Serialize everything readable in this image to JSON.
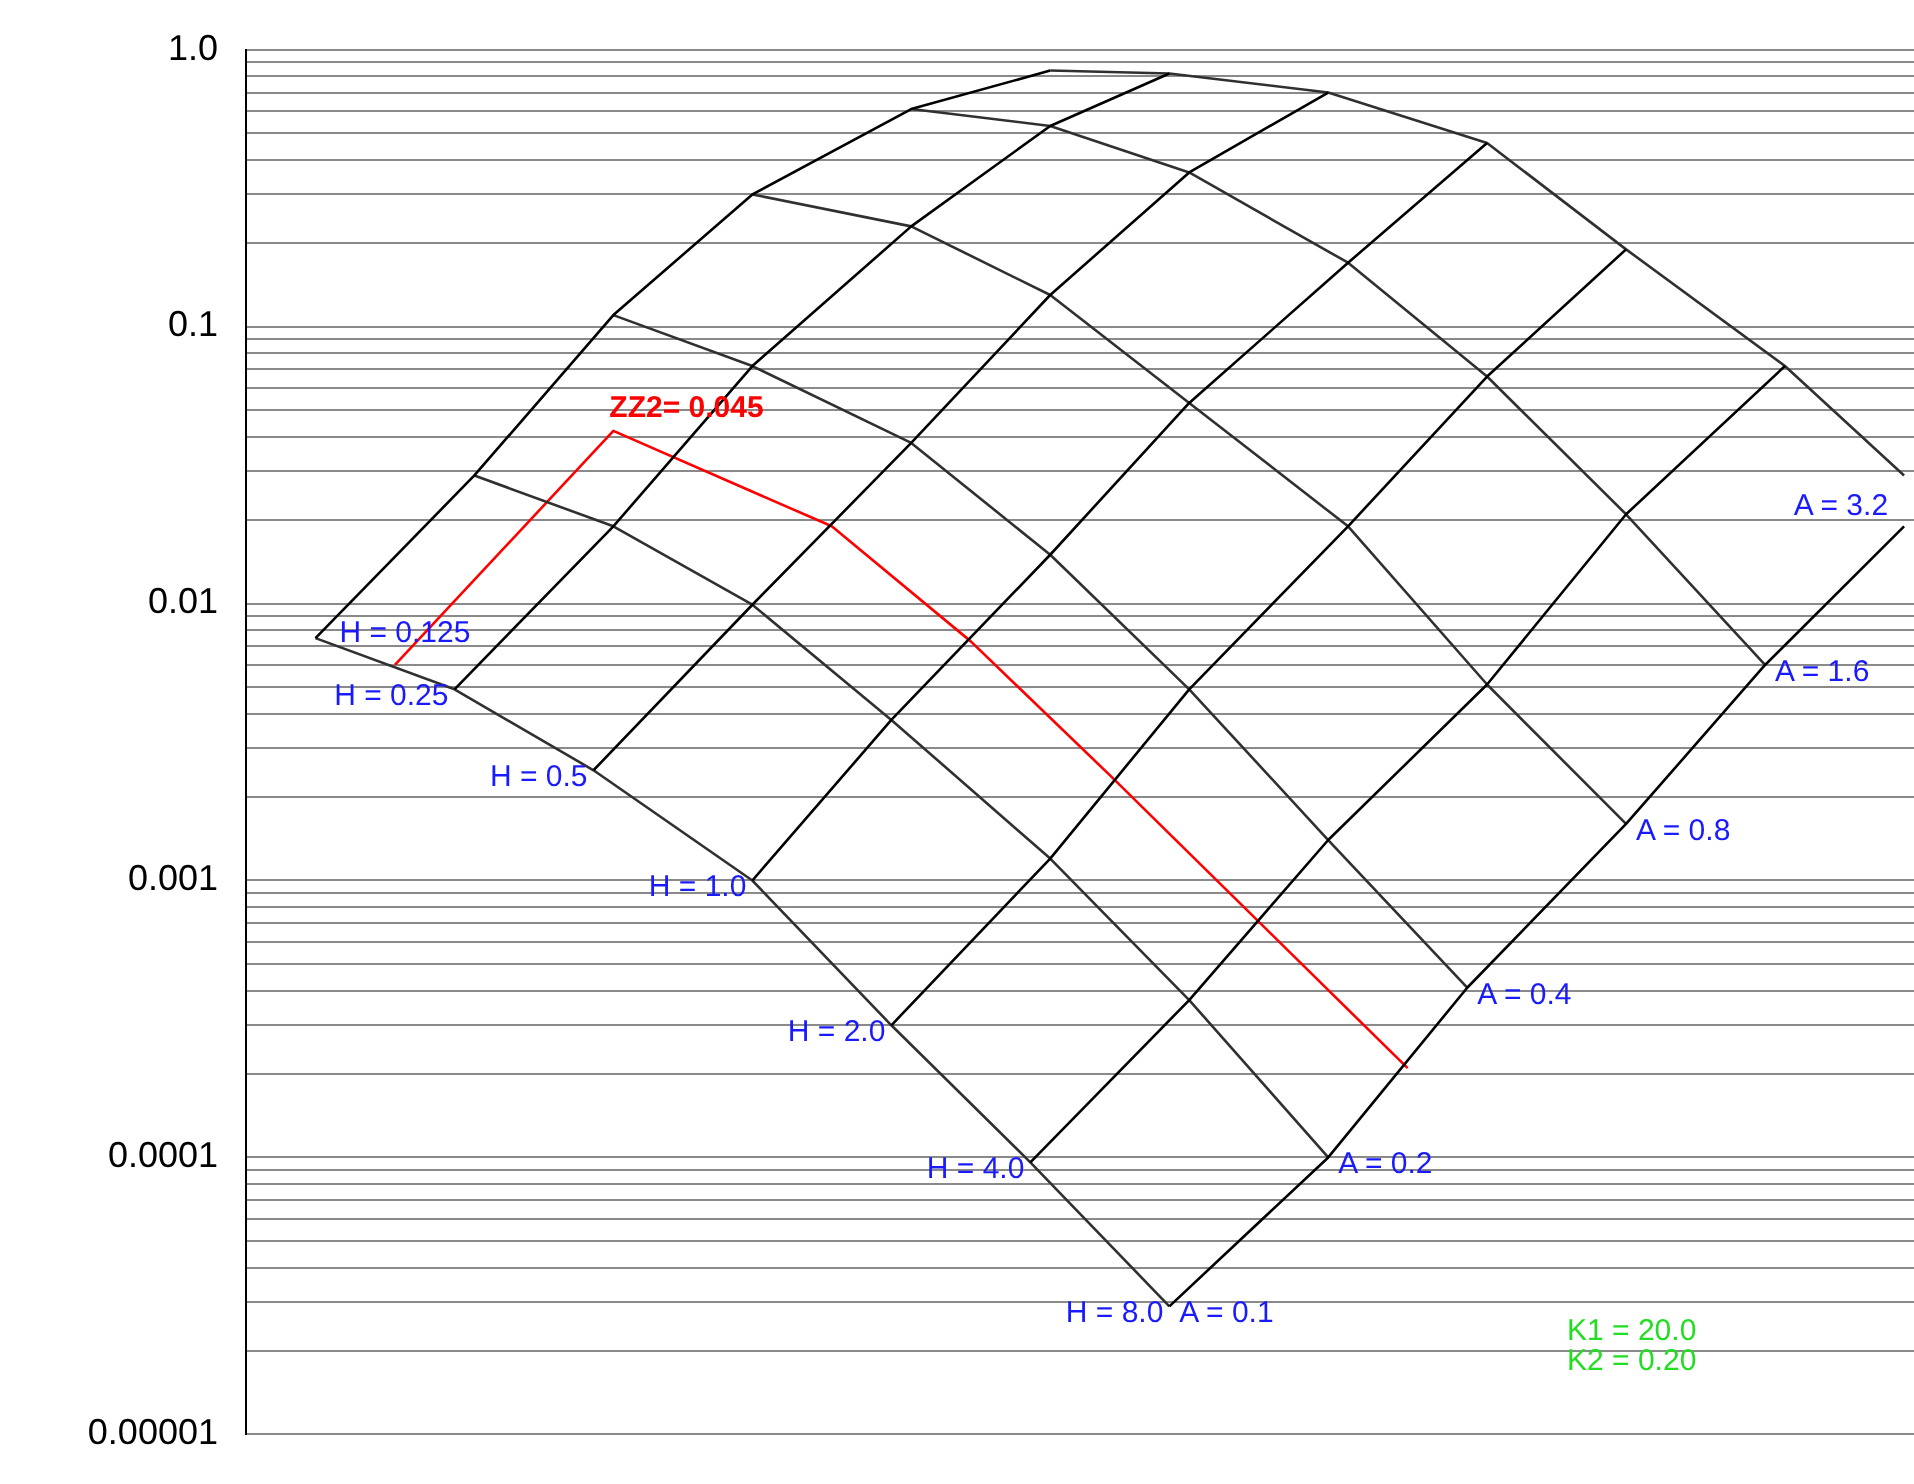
{
  "chart_data": {
    "type": "line",
    "log": true,
    "grid": "y",
    "tick_labels": "y",
    "categories": [
      null,
      null,
      null,
      null,
      null,
      null,
      null,
      null,
      null,
      null,
      null,
      null,
      null,
      null,
      null,
      null,
      null,
      null,
      null,
      null,
      null,
      null,
      null,
      null,
      null,
      null,
      null,
      null,
      null,
      null,
      null,
      null,
      null,
      null,
      null,
      null,
      null,
      null,
      null,
      null,
      null,
      null,
      null,
      null,
      null,
      null,
      null,
      null,
      null,
      null,
      null,
      null,
      null,
      null,
      null,
      null,
      null,
      null,
      null,
      null,
      null,
      null,
      null,
      null,
      null,
      null,
      null,
      null,
      null,
      null,
      null,
      null,
      null,
      null,
      null,
      null,
      null,
      null,
      null,
      null,
      null,
      null,
      null,
      null
    ],
    "ylim": [
      1e-05,
      1
    ],
    "yticks": [
      {
        "value": 1,
        "label": "1.0"
      },
      {
        "value": 0.9,
        "label": null
      },
      {
        "value": 0.8,
        "label": null
      },
      {
        "value": 0.7,
        "label": null
      },
      {
        "value": 0.6,
        "label": null
      },
      {
        "value": 0.5,
        "label": null
      },
      {
        "value": 0.4,
        "label": null
      },
      {
        "value": 0.3,
        "label": null
      },
      {
        "value": 0.2,
        "label": null
      },
      0.1,
      {
        "value": 0.09,
        "label": null
      },
      {
        "value": 0.08,
        "label": null
      },
      {
        "value": 0.07,
        "label": null
      },
      {
        "value": 0.06,
        "label": null
      },
      {
        "value": 0.05,
        "label": null
      },
      {
        "value": 0.04,
        "label": null
      },
      {
        "value": 0.03,
        "label": null
      },
      {
        "value": 0.02,
        "label": null
      },
      0.01,
      {
        "value": 0.009,
        "label": null
      },
      {
        "value": 0.008,
        "label": null
      },
      {
        "value": 0.007,
        "label": null
      },
      {
        "value": 0.006,
        "label": null
      },
      {
        "value": 0.005,
        "label": null
      },
      {
        "value": 0.004,
        "label": null
      },
      {
        "value": 0.003,
        "label": null
      },
      {
        "value": 0.002,
        "label": null
      },
      0.001,
      {
        "value": 0.0009,
        "label": null
      },
      {
        "value": 0.0008,
        "label": null
      },
      {
        "value": 0.0007,
        "label": null
      },
      {
        "value": 0.0006,
        "label": null
      },
      {
        "value": 0.0005,
        "label": null
      },
      {
        "value": 0.0004,
        "label": null
      },
      {
        "value": 0.0003,
        "label": null
      },
      {
        "value": 0.0002,
        "label": null
      },
      0.0001,
      {
        "value": 9e-05,
        "label": null
      },
      {
        "value": 8e-05,
        "label": null
      },
      {
        "value": 7e-05,
        "label": null
      },
      {
        "value": 6e-05,
        "label": null
      },
      {
        "value": 5e-05,
        "label": null
      },
      {
        "value": 4e-05,
        "label": null
      },
      {
        "value": 3e-05,
        "label": null
      },
      {
        "value": 2e-05,
        "label": null
      },
      {
        "value": 1e-05,
        "label": "0.00001"
      }
    ],
    "series": [
      {
        "name": "H = 0.125",
        "color": "#000000",
        "values": [
          null,
          null,
          null,
          0.0075,
          null,
          null,
          null,
          null,
          null,
          null,
          null,
          0.029,
          null,
          null,
          null,
          null,
          null,
          null,
          0.11,
          null,
          null,
          null,
          null,
          null,
          null,
          0.3,
          null,
          null,
          null,
          null,
          null,
          null,
          null,
          0.61,
          null,
          null,
          null,
          null,
          null,
          null,
          0.84,
          null,
          null,
          null,
          null,
          null,
          null,
          null,
          null,
          null,
          null,
          null,
          null,
          null,
          null,
          null,
          null,
          null,
          null,
          null,
          null,
          null,
          null,
          null,
          null,
          null,
          null,
          null,
          null,
          null,
          null,
          null,
          null,
          null,
          null,
          null,
          null,
          null,
          null,
          null,
          null,
          null,
          null,
          null
        ]
      },
      {
        "name": "H = 0.25",
        "color": "#000000",
        "values": [
          null,
          null,
          null,
          null,
          null,
          null,
          null,
          null,
          null,
          null,
          0.0049,
          null,
          null,
          null,
          null,
          null,
          null,
          null,
          0.019,
          null,
          null,
          null,
          null,
          null,
          null,
          0.072,
          null,
          null,
          null,
          null,
          null,
          null,
          null,
          0.23,
          null,
          null,
          null,
          null,
          null,
          null,
          0.53,
          null,
          null,
          null,
          null,
          null,
          0.82,
          null,
          null,
          null,
          null,
          null,
          null,
          null,
          null,
          null,
          null,
          null,
          null,
          null,
          null,
          null,
          null,
          null,
          null,
          null,
          null,
          null,
          null,
          null,
          null,
          null,
          null,
          null,
          null,
          null,
          null,
          null,
          null,
          null,
          null,
          null,
          null,
          null
        ]
      },
      {
        "name": "H = 0.5",
        "color": "#000000",
        "values": [
          null,
          null,
          null,
          null,
          null,
          null,
          null,
          null,
          null,
          null,
          null,
          null,
          null,
          null,
          null,
          null,
          null,
          0.0025,
          null,
          null,
          null,
          null,
          null,
          null,
          null,
          0.0099,
          null,
          null,
          null,
          null,
          null,
          null,
          null,
          0.038,
          null,
          null,
          null,
          null,
          null,
          null,
          0.13,
          null,
          null,
          null,
          null,
          null,
          null,
          0.36,
          null,
          null,
          null,
          null,
          null,
          null,
          0.7,
          null,
          null,
          null,
          null,
          null,
          null,
          null,
          null,
          null,
          null,
          null,
          null,
          null,
          null,
          null,
          null,
          null,
          null,
          null,
          null,
          null,
          null,
          null,
          null,
          null,
          null,
          null,
          null,
          null
        ]
      },
      {
        "name": "H = 1.0",
        "color": "#000000",
        "values": [
          null,
          null,
          null,
          null,
          null,
          null,
          null,
          null,
          null,
          null,
          null,
          null,
          null,
          null,
          null,
          null,
          null,
          null,
          null,
          null,
          null,
          null,
          null,
          null,
          null,
          0.001,
          null,
          null,
          null,
          null,
          null,
          null,
          0.0038,
          null,
          null,
          null,
          null,
          null,
          null,
          null,
          0.015,
          null,
          null,
          null,
          null,
          null,
          null,
          0.053,
          null,
          null,
          null,
          null,
          null,
          null,
          null,
          0.17,
          null,
          null,
          null,
          null,
          null,
          null,
          0.46,
          null,
          null,
          null,
          null,
          null,
          null,
          null,
          null,
          null,
          null,
          null,
          null,
          null,
          null,
          null,
          null,
          null,
          null,
          null,
          null,
          null
        ]
      },
      {
        "name": "H = 2.0",
        "color": "#000000",
        "values": [
          null,
          null,
          null,
          null,
          null,
          null,
          null,
          null,
          null,
          null,
          null,
          null,
          null,
          null,
          null,
          null,
          null,
          null,
          null,
          null,
          null,
          null,
          null,
          null,
          null,
          null,
          null,
          null,
          null,
          null,
          null,
          null,
          0.0003,
          null,
          null,
          null,
          null,
          null,
          null,
          null,
          0.0012,
          null,
          null,
          null,
          null,
          null,
          null,
          0.0049,
          null,
          null,
          null,
          null,
          null,
          null,
          null,
          0.019,
          null,
          null,
          null,
          null,
          null,
          null,
          0.066,
          null,
          null,
          null,
          null,
          null,
          null,
          0.19,
          null,
          null,
          null,
          null,
          null,
          null,
          null,
          null,
          null,
          null,
          null,
          null,
          null,
          null
        ]
      },
      {
        "name": "H = 4.0",
        "color": "#000000",
        "values": [
          null,
          null,
          null,
          null,
          null,
          null,
          null,
          null,
          null,
          null,
          null,
          null,
          null,
          null,
          null,
          null,
          null,
          null,
          null,
          null,
          null,
          null,
          null,
          null,
          null,
          null,
          null,
          null,
          null,
          null,
          null,
          null,
          null,
          null,
          null,
          null,
          null,
          null,
          null,
          9.6e-05,
          null,
          null,
          null,
          null,
          null,
          null,
          null,
          0.00037,
          null,
          null,
          null,
          null,
          null,
          null,
          0.0014,
          null,
          null,
          null,
          null,
          null,
          null,
          null,
          0.0051,
          null,
          null,
          null,
          null,
          null,
          null,
          0.021,
          null,
          null,
          null,
          null,
          null,
          null,
          null,
          0.072,
          null,
          null,
          null,
          null,
          null,
          null
        ]
      },
      {
        "name": "H = 8.0",
        "color": "#000000",
        "values": [
          null,
          null,
          null,
          null,
          null,
          null,
          null,
          null,
          null,
          null,
          null,
          null,
          null,
          null,
          null,
          null,
          null,
          null,
          null,
          null,
          null,
          null,
          null,
          null,
          null,
          null,
          null,
          null,
          null,
          null,
          null,
          null,
          null,
          null,
          null,
          null,
          null,
          null,
          null,
          null,
          null,
          null,
          null,
          null,
          null,
          null,
          2.9e-05,
          null,
          null,
          null,
          null,
          null,
          null,
          null,
          0.0001,
          null,
          null,
          null,
          null,
          null,
          null,
          0.00041,
          null,
          null,
          null,
          null,
          null,
          null,
          null,
          0.0016,
          null,
          null,
          null,
          null,
          null,
          null,
          0.006,
          null,
          null,
          null,
          null,
          null,
          null,
          0.019
        ]
      },
      {
        "name": "A = 0.1",
        "color": "#303030",
        "values": [
          null,
          null,
          null,
          0.0075,
          null,
          null,
          null,
          null,
          null,
          null,
          0.0049,
          null,
          null,
          null,
          null,
          null,
          null,
          0.0025,
          null,
          null,
          null,
          null,
          null,
          null,
          null,
          0.001,
          null,
          null,
          null,
          null,
          null,
          null,
          0.0003,
          null,
          null,
          null,
          null,
          null,
          null,
          9.6e-05,
          null,
          null,
          null,
          null,
          null,
          null,
          2.9e-05,
          null,
          null,
          null,
          null,
          null,
          null,
          null,
          null,
          null,
          null,
          null,
          null,
          null,
          null,
          null,
          null,
          null,
          null,
          null,
          null,
          null,
          null,
          null,
          null,
          null,
          null,
          null,
          null,
          null,
          null,
          null,
          null,
          null,
          null,
          null,
          null,
          null
        ]
      },
      {
        "name": "A = 0.2",
        "color": "#303030",
        "values": [
          null,
          null,
          null,
          null,
          null,
          null,
          null,
          null,
          null,
          null,
          null,
          0.029,
          null,
          null,
          null,
          null,
          null,
          null,
          0.019,
          null,
          null,
          null,
          null,
          null,
          null,
          0.0099,
          null,
          null,
          null,
          null,
          null,
          null,
          0.0038,
          null,
          null,
          null,
          null,
          null,
          null,
          null,
          0.0012,
          null,
          null,
          null,
          null,
          null,
          null,
          0.00037,
          null,
          null,
          null,
          null,
          null,
          null,
          0.0001,
          null,
          null,
          null,
          null,
          null,
          null,
          null,
          null,
          null,
          null,
          null,
          null,
          null,
          null,
          null,
          null,
          null,
          null,
          null,
          null,
          null,
          null,
          null,
          null,
          null,
          null,
          null,
          null,
          null
        ]
      },
      {
        "name": "A = 0.4",
        "color": "#303030",
        "values": [
          null,
          null,
          null,
          null,
          null,
          null,
          null,
          null,
          null,
          null,
          null,
          null,
          null,
          null,
          null,
          null,
          null,
          null,
          0.11,
          null,
          null,
          null,
          null,
          null,
          null,
          0.072,
          null,
          null,
          null,
          null,
          null,
          null,
          null,
          0.038,
          null,
          null,
          null,
          null,
          null,
          null,
          0.015,
          null,
          null,
          null,
          null,
          null,
          null,
          0.0049,
          null,
          null,
          null,
          null,
          null,
          null,
          0.0014,
          null,
          null,
          null,
          null,
          null,
          null,
          0.00041,
          null,
          null,
          null,
          null,
          null,
          null,
          null,
          null,
          null,
          null,
          null,
          null,
          null,
          null,
          null,
          null,
          null,
          null,
          null,
          null,
          null,
          null
        ]
      },
      {
        "name": "A = 0.8",
        "color": "#303030",
        "values": [
          null,
          null,
          null,
          null,
          null,
          null,
          null,
          null,
          null,
          null,
          null,
          null,
          null,
          null,
          null,
          null,
          null,
          null,
          null,
          null,
          null,
          null,
          null,
          null,
          null,
          0.3,
          null,
          null,
          null,
          null,
          null,
          null,
          null,
          0.23,
          null,
          null,
          null,
          null,
          null,
          null,
          0.13,
          null,
          null,
          null,
          null,
          null,
          null,
          0.053,
          null,
          null,
          null,
          null,
          null,
          null,
          null,
          0.019,
          null,
          null,
          null,
          null,
          null,
          null,
          0.0051,
          null,
          null,
          null,
          null,
          null,
          null,
          0.0016,
          null,
          null,
          null,
          null,
          null,
          null,
          null,
          null,
          null,
          null,
          null,
          null,
          null,
          null
        ]
      },
      {
        "name": "A = 1.6",
        "color": "#303030",
        "values": [
          null,
          null,
          null,
          null,
          null,
          null,
          null,
          null,
          null,
          null,
          null,
          null,
          null,
          null,
          null,
          null,
          null,
          null,
          null,
          null,
          null,
          null,
          null,
          null,
          null,
          null,
          null,
          null,
          null,
          null,
          null,
          null,
          null,
          0.61,
          null,
          null,
          null,
          null,
          null,
          null,
          0.53,
          null,
          null,
          null,
          null,
          null,
          null,
          0.36,
          null,
          null,
          null,
          null,
          null,
          null,
          null,
          0.17,
          null,
          null,
          null,
          null,
          null,
          null,
          0.066,
          null,
          null,
          null,
          null,
          null,
          null,
          0.021,
          null,
          null,
          null,
          null,
          null,
          null,
          0.006,
          null,
          null,
          null,
          null,
          null,
          null,
          null
        ]
      },
      {
        "name": "A = 3.2",
        "color": "#303030",
        "values": [
          null,
          null,
          null,
          null,
          null,
          null,
          null,
          null,
          null,
          null,
          null,
          null,
          null,
          null,
          null,
          null,
          null,
          null,
          null,
          null,
          null,
          null,
          null,
          null,
          null,
          null,
          null,
          null,
          null,
          null,
          null,
          null,
          null,
          null,
          null,
          null,
          null,
          null,
          null,
          null,
          0.84,
          null,
          null,
          null,
          null,
          null,
          0.82,
          null,
          null,
          null,
          null,
          null,
          null,
          null,
          0.7,
          null,
          null,
          null,
          null,
          null,
          null,
          null,
          0.46,
          null,
          null,
          null,
          null,
          null,
          null,
          0.19,
          null,
          null,
          null,
          null,
          null,
          null,
          null,
          0.072,
          null,
          null,
          null,
          null,
          null,
          0.029
        ]
      },
      {
        "name": "ZZ2= 0.045",
        "color": "#ff0000",
        "values": [
          null,
          null,
          null,
          null,
          null,
          null,
          null,
          0.006,
          null,
          null,
          null,
          null,
          null,
          null,
          null,
          null,
          null,
          null,
          0.042,
          null,
          null,
          null,
          null,
          null,
          null,
          null,
          null,
          null,
          null,
          0.019,
          null,
          null,
          null,
          null,
          null,
          null,
          0.0073,
          null,
          null,
          null,
          null,
          null,
          null,
          0.0024,
          null,
          null,
          null,
          null,
          null,
          null,
          0.00077,
          null,
          null,
          null,
          null,
          null,
          null,
          null,
          0.00021,
          null,
          null,
          null,
          null,
          null,
          null,
          null,
          null,
          null,
          null,
          null,
          null,
          null,
          null,
          null,
          null,
          null,
          null,
          null,
          null,
          null,
          null,
          null,
          null,
          null
        ]
      }
    ],
    "annotations": [
      "K1 = 20.0",
      "K2 = 0.20"
    ]
  }
}
